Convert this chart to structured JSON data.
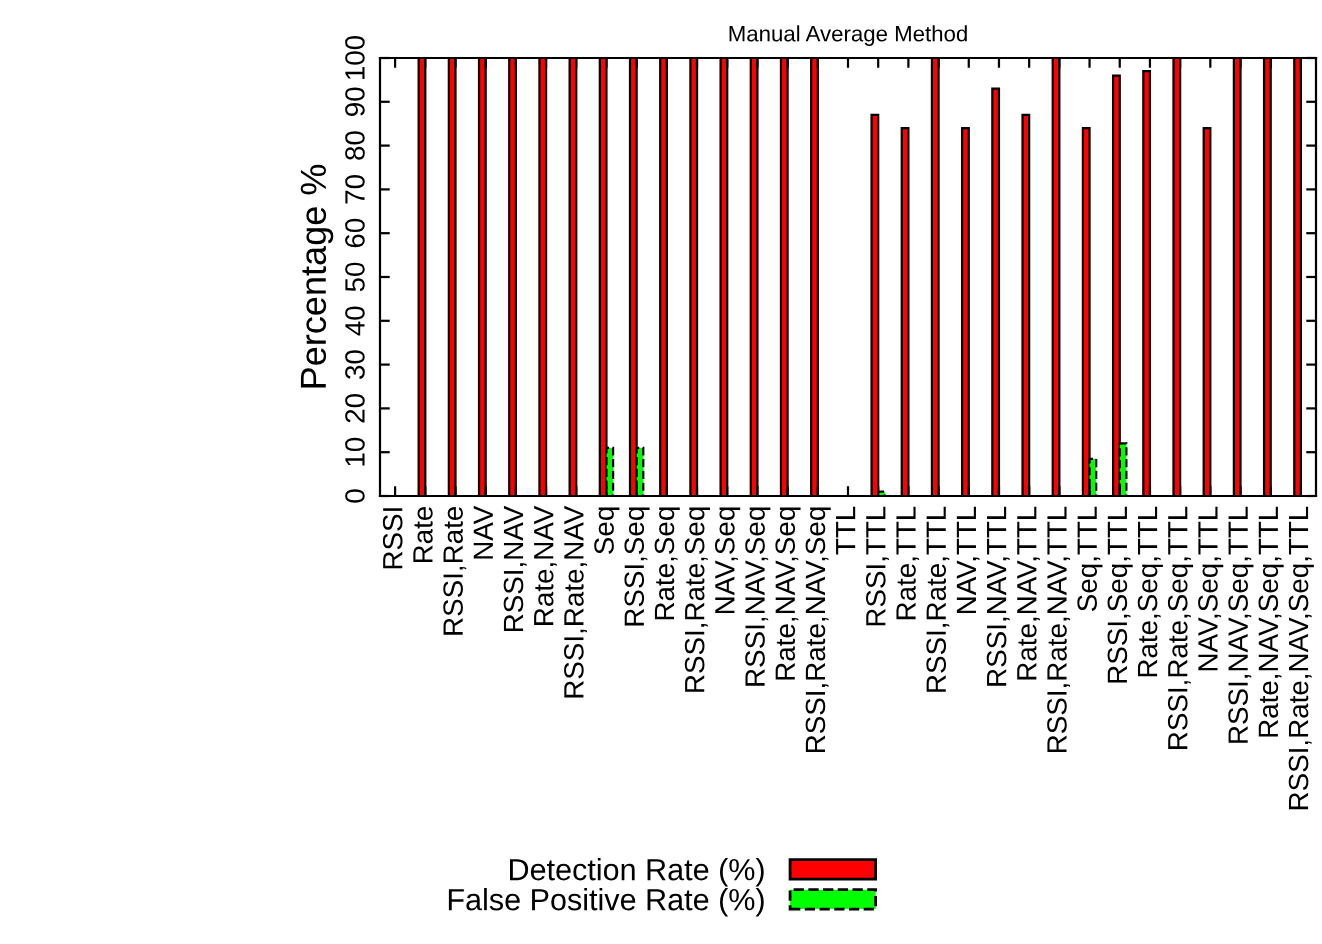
{
  "chart_data": {
    "type": "bar",
    "title": "Manual Average Method",
    "ylabel": "Percentage %",
    "categories": [
      "RSSI",
      "Rate",
      "RSSI,Rate",
      "NAV",
      "RSSI,NAV",
      "Rate,NAV",
      "RSSI,Rate,NAV",
      "Seq",
      "RSSI,Seq",
      "Rate,Seq",
      "RSSI,Rate,Seq",
      "NAV,Seq",
      "RSSI,NAV,Seq",
      "Rate,NAV,Seq",
      "RSSI,Rate,NAV,Seq",
      "TTL",
      "RSSI,TTL",
      "Rate,TTL",
      "RSSI,Rate,TTL",
      "NAV,TTL",
      "RSSI,NAV,TTL",
      "Rate,NAV,TTL",
      "RSSI,Rate,NAV,TTL",
      "Seq,TTL",
      "RSSI,Seq,TTL",
      "Rate,Seq,TTL",
      "RSSI,Rate,Seq,TTL",
      "NAV,Seq,TTL",
      "RSSI,NAV,Seq,TTL",
      "Rate,NAV,Seq,TTL",
      "RSSI,Rate,NAV,Seq,TTL"
    ],
    "series": [
      {
        "name": "Detection Rate (%)",
        "color": "#ff0000",
        "values": [
          0,
          100,
          100,
          100,
          100,
          100,
          100,
          100,
          100,
          100,
          100,
          100,
          100,
          100,
          100,
          0,
          87,
          84,
          100,
          84,
          93,
          87,
          100,
          84,
          96,
          97,
          100,
          84,
          100,
          100,
          100
        ]
      },
      {
        "name": "False Positive Rate (%)",
        "color": "#00ff00",
        "line_style": "dashed",
        "values": [
          0,
          0,
          0,
          0,
          0,
          0,
          0,
          11,
          11,
          0,
          0,
          0,
          0,
          0,
          0,
          0,
          1,
          0,
          0,
          0,
          0,
          0,
          0,
          8.5,
          12,
          0,
          0,
          0,
          0,
          0,
          0
        ]
      }
    ],
    "ylim": [
      0,
      100
    ],
    "yticks": [
      0,
      10,
      20,
      30,
      40,
      50,
      60,
      70,
      80,
      90,
      100
    ],
    "grid": false,
    "legend": "bottom"
  }
}
